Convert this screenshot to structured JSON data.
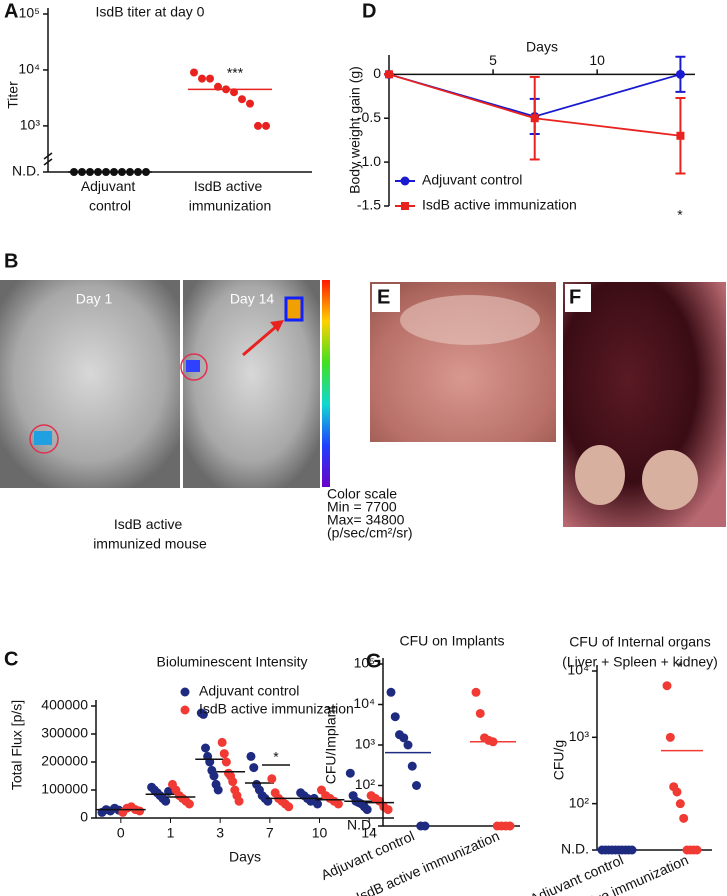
{
  "panel_labels": [
    "A",
    "B",
    "C",
    "D",
    "E",
    "F",
    "G"
  ],
  "imaging": {
    "day_labels": [
      "Day 1",
      "Day 14"
    ],
    "caption": "IsdB active immunized mouse",
    "scale": [
      "Color scale",
      "Min = 7700",
      "Max= 34800",
      "(p/sec/cm²/sr)"
    ]
  },
  "chart_data": [
    {
      "type": "strip",
      "title": "IsdB titer at day 0",
      "ylabel": "Titer",
      "categories": [
        "Adjuvant control",
        "IsdB active immunization"
      ],
      "values": [
        [
          150,
          150,
          150,
          150,
          150,
          150,
          150,
          150,
          150,
          150
        ],
        [
          9000,
          7000,
          7000,
          5000,
          4500,
          4000,
          3000,
          2500,
          1000,
          1000
        ]
      ],
      "means": [
        150,
        4500
      ],
      "colors": [
        "#111111",
        "#e8231f"
      ],
      "log": true,
      "ylim": [
        150,
        100000
      ],
      "yticks": [
        {
          "value": 150,
          "label": "N.D."
        },
        {
          "value": 1000,
          "label": "10³"
        },
        {
          "value": 10000,
          "label": "10⁴"
        },
        {
          "value": 100000,
          "label": "10⁵"
        }
      ],
      "annotation": "***"
    },
    {
      "type": "strip",
      "title": "Bioluminescent Intensity",
      "ylabel": "Total Flux [p/s]",
      "xlabel": "Days",
      "categories": [
        "0",
        "1",
        "3",
        "7",
        "10",
        "14"
      ],
      "series": [
        {
          "name": "Adjuvant control",
          "color": "#1e2b80",
          "values": [
            [
              20000,
              30000,
              25000,
              35000,
              28000
            ],
            [
              110000,
              100000,
              90000,
              80000,
              70000,
              60000,
              95000
            ],
            [
              375000,
              370000,
              250000,
              220000,
              200000,
              170000,
              150000,
              120000,
              100000
            ],
            [
              220000,
              180000,
              120000,
              100000,
              80000,
              70000,
              60000
            ],
            [
              90000,
              80000,
              70000,
              60000,
              70000,
              50000
            ],
            [
              160000,
              80000,
              60000,
              55000,
              50000,
              40000,
              30000
            ]
          ],
          "means": [
            30000,
            85000,
            210000,
            125000,
            70000,
            60000
          ]
        },
        {
          "name": "IsdB active immunization",
          "color": "#f03a33",
          "values": [
            [
              20000,
              35000,
              40000,
              30000,
              25000
            ],
            [
              120000,
              100000,
              80000,
              70000,
              60000,
              50000
            ],
            [
              270000,
              230000,
              200000,
              160000,
              150000,
              130000,
              100000,
              80000,
              60000
            ],
            [
              140000,
              90000,
              70000,
              60000,
              50000,
              40000
            ],
            [
              100000,
              80000,
              70000,
              60000,
              50000
            ],
            [
              80000,
              70000,
              60000,
              40000,
              30000
            ]
          ],
          "means": [
            30000,
            75000,
            165000,
            70000,
            65000,
            55000
          ]
        }
      ],
      "ylim": [
        0,
        400000
      ],
      "yticks": [
        0,
        100000,
        200000,
        300000,
        400000
      ],
      "annotation": "*",
      "legend": "top"
    },
    {
      "type": "line",
      "ylabel": "Body weight gain (g)",
      "xlabel": "Days",
      "x": [
        0,
        7,
        14
      ],
      "series": [
        {
          "name": "Adjuvant control",
          "color": "#1a1ad0",
          "marker": "circle",
          "values": [
            0,
            -0.48,
            0
          ],
          "errors": [
            0,
            0.2,
            0.2
          ]
        },
        {
          "name": "IsdB active immunization",
          "color": "#e8231f",
          "marker": "square",
          "values": [
            0,
            -0.5,
            -0.7
          ],
          "errors": [
            0,
            0.47,
            0.43
          ]
        }
      ],
      "xlim": [
        0,
        14.7
      ],
      "xticks": [
        5,
        10
      ],
      "ylim": [
        -1.5,
        0.22
      ],
      "yticks": [
        0,
        -0.5,
        {
          "value": -1,
          "label": "-1.0"
        },
        -1.5
      ],
      "annotation": "*",
      "legend": "bottom-left"
    },
    {
      "type": "strip",
      "title": "CFU on Implants",
      "ylabel": "CFU/Implant",
      "categories": [
        "Adjuvant control",
        "IsdB active immunization"
      ],
      "values": [
        [
          20000,
          5000,
          1800,
          1500,
          1000,
          300,
          100,
          10,
          10
        ],
        [
          20000,
          6000,
          1500,
          1300,
          1200,
          10,
          10,
          10,
          10
        ]
      ],
      "means": [
        650,
        1200
      ],
      "colors": [
        "#1e2b80",
        "#f03a33"
      ],
      "log": true,
      "ylim": [
        10,
        100000
      ],
      "yticks": [
        {
          "value": 10,
          "label": "N.D."
        },
        {
          "value": 100,
          "label": "10²"
        },
        {
          "value": 1000,
          "label": "10³"
        },
        {
          "value": 10000,
          "label": "10⁴"
        },
        {
          "value": 100000,
          "label": "10⁵"
        }
      ]
    },
    {
      "type": "strip",
      "title": "CFU of Internal organs",
      "subtitle": "(Liver + Spleen + kidney)",
      "ylabel": "CFU/g",
      "categories": [
        "Adjuvant control",
        "IsdB active immunization"
      ],
      "values": [
        [
          20,
          20,
          20,
          20,
          20,
          20,
          20,
          20,
          20,
          20
        ],
        [
          6000,
          1000,
          180,
          150,
          100,
          60,
          20,
          20,
          20,
          20
        ]
      ],
      "means": [
        20,
        630
      ],
      "colors": [
        "#1e2b80",
        "#f03a33"
      ],
      "log": true,
      "ylim": [
        20,
        10000
      ],
      "yticks": [
        {
          "value": 20,
          "label": "N.D."
        },
        {
          "value": 100,
          "label": "10²"
        },
        {
          "value": 1000,
          "label": "10³"
        },
        {
          "value": 10000,
          "label": "10⁴"
        }
      ],
      "annotation": "*"
    }
  ]
}
